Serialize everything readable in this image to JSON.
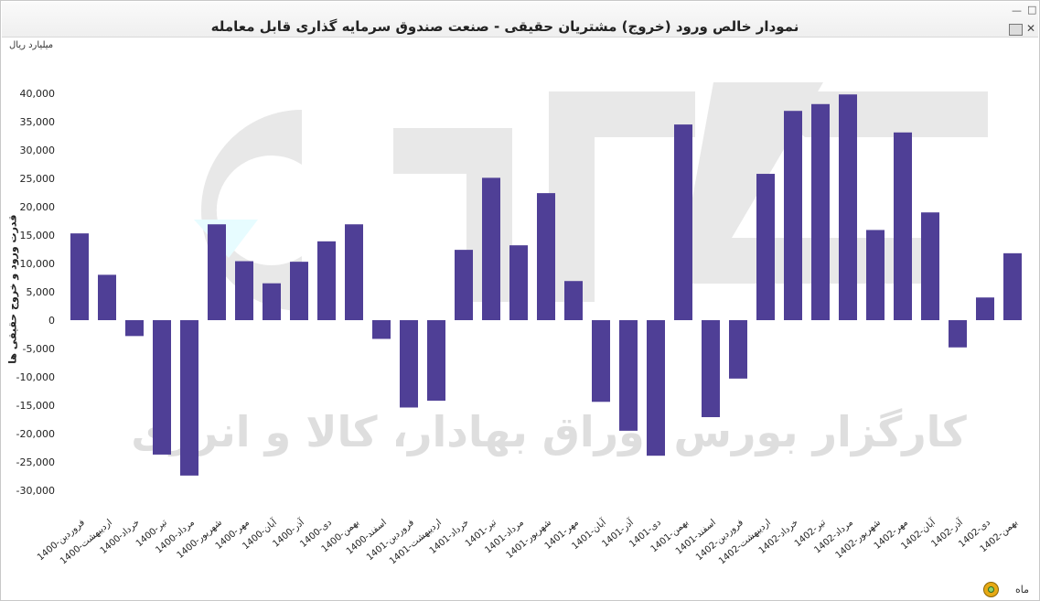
{
  "window": {
    "title": "نمودار خالص ورود (خروج) مشتریان حقیقی - صنعت صندوق سرمایه گذاری قابل معامله"
  },
  "footer": {
    "x_unit_label": "ماه"
  },
  "watermark": {
    "text": "کارگزار بورس اوراق بهادار، کالا و انرژی"
  },
  "colors": {
    "bar": "#4f3f96",
    "watermark": "#e2e2e2",
    "background": "#ffffff"
  },
  "icons": {
    "minimize": "minimize-icon",
    "maximize": "maximize-icon",
    "print": "print-icon",
    "close": "close-icon",
    "refresh": "refresh-icon"
  },
  "chart_data": {
    "type": "bar",
    "title": "نمودار خالص ورود (خروج) مشتریان حقیقی - صنعت صندوق سرمایه گذاری قابل معامله",
    "unit_label": "میلیارد ریال",
    "ylabel": "قدرت ورود و خروج حقیقی ها",
    "xlabel": "ماه",
    "ylim": [
      -30000,
      40000
    ],
    "yticks": [
      -30000,
      -25000,
      -20000,
      -15000,
      -10000,
      -5000,
      0,
      5000,
      10000,
      15000,
      20000,
      25000,
      30000,
      35000,
      40000
    ],
    "ytick_labels": [
      "-30,000",
      "-25,000",
      "-20,000",
      "-15,000",
      "-10,000",
      "-5,000",
      "0",
      "5,000",
      "10,000",
      "15,000",
      "20,000",
      "25,000",
      "30,000",
      "35,000",
      "40,000"
    ],
    "grid": false,
    "categories": [
      "1400-فروردین",
      "1400-اردیبهشت",
      "1400-خرداد",
      "1400-تیر",
      "1400-مرداد",
      "1400-شهریور",
      "1400-مهر",
      "1400-آبان",
      "1400-آذر",
      "1400-دی",
      "1400-بهمن",
      "1400-اسفند",
      "1401-فروردین",
      "1401-اردیبهشت",
      "1401-خرداد",
      "1401-تیر",
      "1401-مرداد",
      "1401-شهریور",
      "1401-مهر",
      "1401-آبان",
      "1401-آذر",
      "1401-دی",
      "1401-بهمن",
      "1401-اسفند",
      "1402-فروردین",
      "1402-اردیبهشت",
      "1402-خرداد",
      "1402-تیر",
      "1402-مرداد",
      "1402-شهریور",
      "1402-مهر",
      "1402-آبان",
      "1402-آذر",
      "1402-دی",
      "1402-بهمن"
    ],
    "values": [
      15300,
      8000,
      -2800,
      -23700,
      -27400,
      16900,
      10400,
      6500,
      10300,
      13900,
      16900,
      -3300,
      -15400,
      -14200,
      12400,
      25100,
      13200,
      22400,
      6900,
      -14400,
      -19500,
      -23900,
      34500,
      -17100,
      -10300,
      25800,
      36900,
      38100,
      39800,
      15900,
      33100,
      19000,
      -4800,
      4000,
      11800
    ]
  }
}
